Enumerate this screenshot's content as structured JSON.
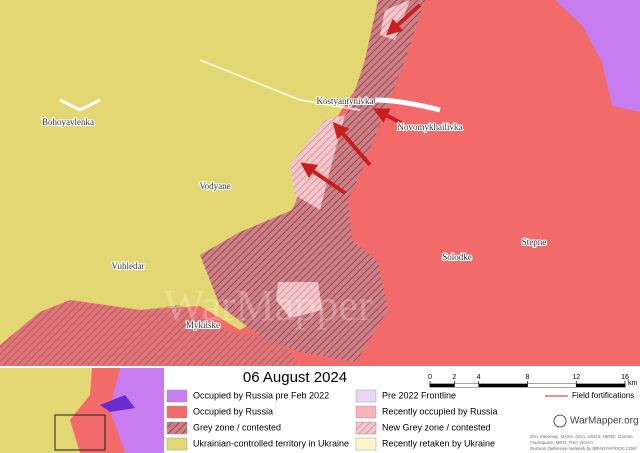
{
  "date": "06 August 2024",
  "places": [
    {
      "label": "Kostyantynivka"
    },
    {
      "label": "Novomykhailivka"
    },
    {
      "label": "Bohoyavlenka"
    },
    {
      "label": "Vodyane"
    },
    {
      "label": "Vuhledar"
    },
    {
      "label": "Solodke"
    },
    {
      "label": "Stepne"
    },
    {
      "label": "Mykilske"
    }
  ],
  "watermark": "WarMapper",
  "legend": [
    {
      "label": "Occupied by Russia pre Feb 2022",
      "color": "#c77cf0"
    },
    {
      "label": "Occupied by Russia",
      "color": "#f26a6a"
    },
    {
      "label": "Grey zone / contested",
      "color": "#c0646e",
      "hatched": true
    },
    {
      "label": "Ukrainian-controlled territory in Ukraine",
      "color": "#e3d774"
    },
    {
      "label": "Pre 2022 Frontline",
      "color": "#e8d8f5"
    },
    {
      "label": "Recently occupied by Russia",
      "color": "#f7b4b4"
    },
    {
      "label": "New Grey zone / contested",
      "color": "#e8a0a8",
      "hatched": true
    },
    {
      "label": "Recently retaken by Ukraine",
      "color": "#fff7c8"
    }
  ],
  "scale": {
    "ticks": [
      0,
      2,
      4,
      8,
      12,
      16
    ],
    "unit": "km"
  },
  "field_fortifications": "Field fortifications",
  "brand": "WarMapper.org",
  "credits": [
    "Esri, Intermap, NASA, NGA, USGS; HERE, Garmin,",
    "Foursquare, METI, FAO, NOAA",
    "Russian Defensive Network by BRADYAFRICK.COM"
  ]
}
